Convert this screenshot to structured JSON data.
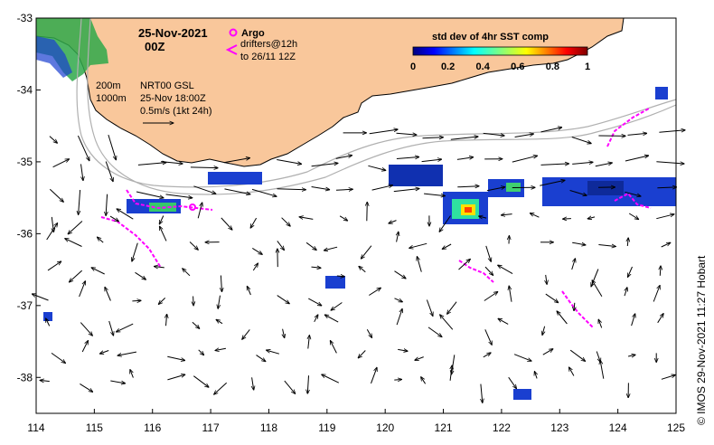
{
  "title": {
    "date": "25-Nov-2021",
    "time": "00Z"
  },
  "legend": {
    "argo_label": "Argo",
    "drifters_line1": "drifters@12h",
    "drifters_line2": "to 26/11 12Z",
    "argo_color": "#ff00ff",
    "drifter_color": "#ff00ff"
  },
  "depth_contours": {
    "label_200": "200m",
    "label_1000": "1000m",
    "color": "#b0b0b0"
  },
  "currents": {
    "product": "NRT00 GSL",
    "valid_time": "25-Nov 18:00Z",
    "scale_label": "0.5m/s (1kt 24h)"
  },
  "colorbar": {
    "title": "std dev of 4hr SST comp",
    "ticks": [
      "0",
      "0.2",
      "0.4",
      "0.6",
      "0.8",
      "1"
    ],
    "range": [
      0,
      1
    ]
  },
  "axes": {
    "x_ticks": [
      "114",
      "115",
      "116",
      "117",
      "118",
      "119",
      "120",
      "121",
      "122",
      "123",
      "124",
      "125"
    ],
    "y_ticks": [
      "-33",
      "-34",
      "-35",
      "-36",
      "-37",
      "-38"
    ],
    "x_range": [
      114,
      125
    ],
    "y_range": [
      -38.5,
      -33
    ]
  },
  "credit": "© IMOS 29-Nov-2021 11:27 Hobart",
  "colors": {
    "land": "#f9c79b",
    "frame": "#000000"
  }
}
